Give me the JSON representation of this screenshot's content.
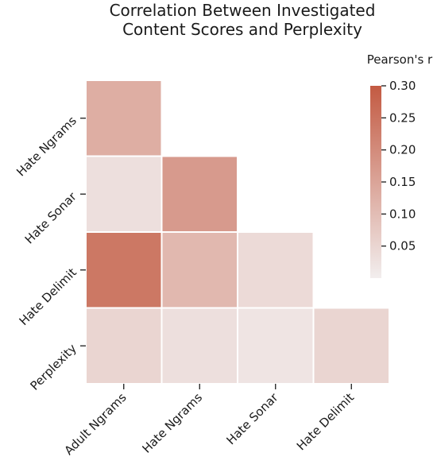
{
  "chart_data": {
    "type": "heatmap",
    "title": [
      "Correlation Between Investigated",
      "Content Scores and Perplexity"
    ],
    "x_categories": [
      "Adult Ngrams",
      "Hate Ngrams",
      "Hate Sonar",
      "Hate Delimit"
    ],
    "y_categories": [
      "Hate Ngrams",
      "Hate Sonar",
      "Hate Delimit",
      "Perplexity"
    ],
    "matrix": [
      [
        0.13,
        null,
        null,
        null
      ],
      [
        0.03,
        0.17,
        null,
        null
      ],
      [
        0.24,
        0.11,
        0.04,
        null
      ],
      [
        0.05,
        0.03,
        0.02,
        0.05
      ]
    ],
    "colorbar": {
      "label": "Pearson's r",
      "range": [
        0.0,
        0.3
      ],
      "ticks": [
        0.05,
        0.1,
        0.15,
        0.2,
        0.25,
        0.3
      ],
      "tick_labels": [
        "0.05",
        "0.10",
        "0.15",
        "0.20",
        "0.25",
        "0.30"
      ],
      "color_low": "#f2eeee",
      "color_high": "#c35a42"
    },
    "mask": "upper triangle (excluding diagonal offset) hidden"
  }
}
